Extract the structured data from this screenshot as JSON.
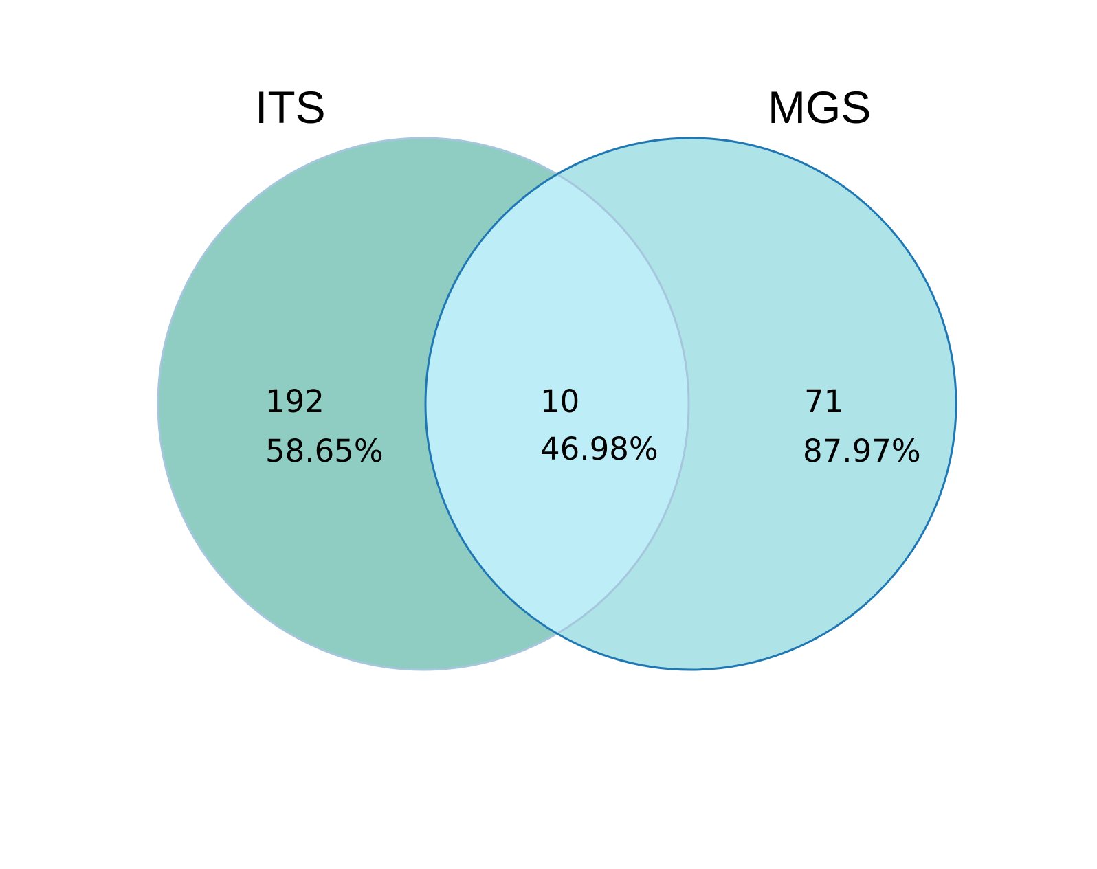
{
  "sets": [
    {
      "name": "ITS",
      "fill": "#8FCDC3",
      "stroke": "#A6C6DD"
    },
    {
      "name": "MGS",
      "fill": "#AEE3E7",
      "stroke": "#1F77B4"
    }
  ],
  "intersection_fill": "#BDEEF7",
  "regions": [
    {
      "id": "its_only",
      "count": "192",
      "percent": "58.65%"
    },
    {
      "id": "both",
      "count": "10",
      "percent": "46.98%"
    },
    {
      "id": "mgs_only",
      "count": "71",
      "percent": "87.97%"
    }
  ]
}
